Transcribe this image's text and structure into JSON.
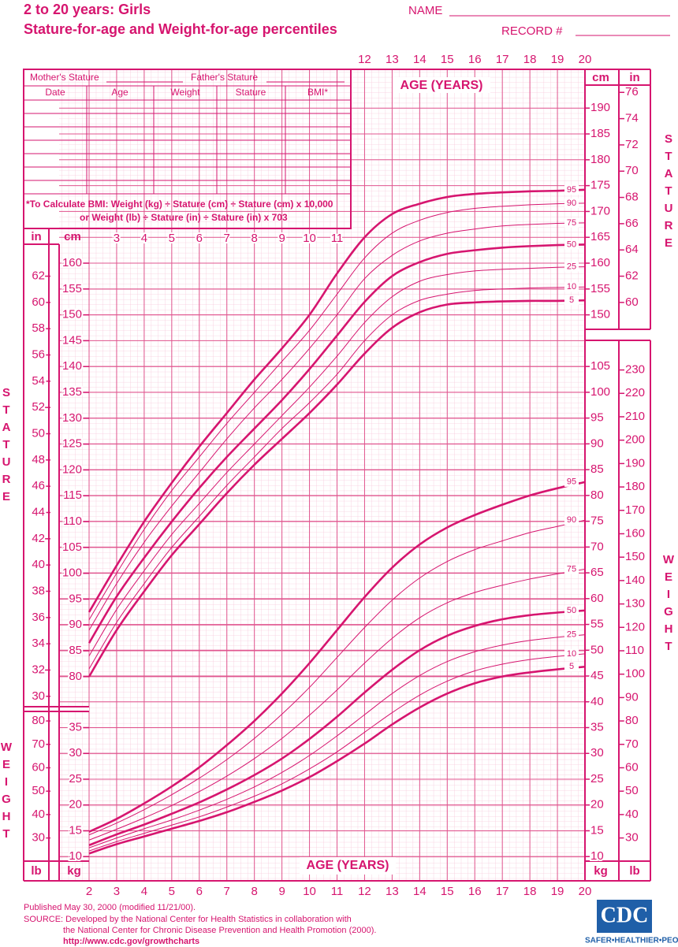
{
  "header": {
    "title": [
      "2 to 20 years: Girls",
      "Stature-for-age and Weight-for-age percentiles"
    ],
    "name": "NAME",
    "record": "RECORD #"
  },
  "form": {
    "mother": "Mother's Stature",
    "father": "Father's Stature",
    "columns": [
      "Date",
      "Age",
      "Weight",
      "Stature",
      "BMI*"
    ],
    "bmi_note": [
      "*To Calculate BMI: Weight (kg) ÷ Stature (cm) ÷ Stature (cm) x 10,000",
      "or Weight (lb) ÷ Stature (in) ÷ Stature (in) x 703"
    ]
  },
  "footer": {
    "published": "Published May 30, 2000 (modified 11/21/00).",
    "source": [
      "SOURCE: Developed by the National Center for Health Statistics in collaboration with",
      "the National Center for Chronic Disease Prevention and Health Promotion (2000)."
    ],
    "url": "http://www.cdc.gov/growthcharts",
    "logo": "CDC",
    "tagline": "SAFER•HEALTHIER•PEOPLE™"
  },
  "chart_data": {
    "type": "line",
    "xlabel": "AGE (YEARS)",
    "ylabel": "STATURE",
    "y2label": "WEIGHT",
    "y_unit": "cm",
    "y_alt_unit": "in",
    "y2_unit": "kg",
    "y2_alt_unit": "lb",
    "x": [
      2,
      3,
      4,
      5,
      6,
      7,
      8,
      9,
      10,
      11,
      12,
      13,
      14,
      15,
      16,
      17,
      18,
      19,
      20
    ],
    "xlim": [
      2,
      20
    ],
    "xticks": [
      2,
      3,
      4,
      5,
      6,
      7,
      8,
      9,
      10,
      11,
      12,
      13,
      14,
      15,
      16,
      17,
      18,
      19,
      20
    ],
    "xticks_top": [
      12,
      13,
      14,
      15,
      16,
      17,
      18,
      19,
      20
    ],
    "xticks_middle": [
      3,
      4,
      5,
      6,
      7,
      8,
      9,
      10,
      11
    ],
    "ylim": [
      40.5,
      197.5
    ],
    "yticks": [
      80,
      85,
      90,
      95,
      100,
      105,
      110,
      115,
      120,
      125,
      130,
      135,
      140,
      145,
      150,
      155,
      160
    ],
    "yticks_right": [
      150,
      155,
      160,
      165,
      170,
      175,
      180,
      185,
      190
    ],
    "y_alt_ticks": [
      30,
      32,
      34,
      36,
      38,
      40,
      42,
      44,
      46,
      48,
      50,
      52,
      54,
      56,
      58,
      60,
      62
    ],
    "y_alt_ticks_right": [
      60,
      62,
      64,
      66,
      68,
      70,
      72,
      74,
      76
    ],
    "y2lim": [
      5.3,
      162.6
    ],
    "y2ticks": [
      10,
      15,
      20,
      25,
      30,
      35
    ],
    "y2ticks_right": [
      10,
      15,
      20,
      25,
      30,
      35,
      40,
      45,
      50,
      55,
      60,
      65,
      70,
      75,
      80,
      85,
      90,
      95,
      100,
      105
    ],
    "y2_alt_ticks": [
      30,
      40,
      50,
      60,
      70,
      80
    ],
    "y2_alt_ticks_right": [
      30,
      40,
      50,
      60,
      70,
      80,
      90,
      100,
      110,
      120,
      130,
      140,
      150,
      160,
      170,
      180,
      190,
      200,
      210,
      220,
      230
    ],
    "grid": true,
    "series": [
      {
        "name": "5",
        "axis": "y",
        "color": "#d6156f",
        "width": 2.6,
        "values": [
          80,
          89,
          96.5,
          103.5,
          109.5,
          115.5,
          121,
          126,
          131,
          136.5,
          142.5,
          147.5,
          150.5,
          152,
          152.4,
          152.6,
          152.7,
          152.7,
          152.8
        ]
      },
      {
        "name": "10",
        "axis": "y",
        "color": "#d6156f",
        "width": 1,
        "values": [
          81.5,
          90.5,
          98,
          105,
          111,
          117,
          122.5,
          128,
          133,
          138.5,
          145,
          150,
          152.8,
          154,
          154.7,
          155,
          155.2,
          155.3,
          155.4
        ]
      },
      {
        "name": "25",
        "axis": "y",
        "color": "#d6156f",
        "width": 1,
        "values": [
          84,
          93,
          100.5,
          107.5,
          113.5,
          119.5,
          125,
          130.5,
          136,
          142,
          148.5,
          153.5,
          156.5,
          157.8,
          158.5,
          158.8,
          159,
          159.2,
          159.3
        ]
      },
      {
        "name": "50",
        "axis": "y",
        "color": "#d6156f",
        "width": 2.6,
        "values": [
          86.5,
          95.5,
          103,
          110,
          116.5,
          122.5,
          128,
          133.5,
          139.5,
          146,
          152.5,
          157.5,
          160.2,
          161.8,
          162.5,
          163,
          163.3,
          163.5,
          163.6
        ]
      },
      {
        "name": "75",
        "axis": "y",
        "color": "#d6156f",
        "width": 1,
        "values": [
          89,
          98,
          106,
          113,
          119.5,
          126,
          132,
          137.5,
          143.5,
          150,
          157,
          161.5,
          164.3,
          165.8,
          166.6,
          167.2,
          167.5,
          167.7,
          167.8
        ]
      },
      {
        "name": "90",
        "axis": "y",
        "color": "#d6156f",
        "width": 1,
        "values": [
          91,
          100,
          108.5,
          116,
          122.5,
          129,
          135,
          141,
          147,
          154,
          161,
          165.8,
          168.3,
          169.8,
          170.6,
          171,
          171.3,
          171.5,
          171.6
        ]
      },
      {
        "name": "95",
        "axis": "y",
        "color": "#d6156f",
        "width": 2.6,
        "values": [
          92.5,
          101.5,
          110,
          117.5,
          124.5,
          131,
          137.5,
          143.5,
          150,
          158,
          165,
          169.5,
          171.5,
          172.8,
          173.4,
          173.7,
          173.9,
          174,
          174.2
        ]
      },
      {
        "name": "5",
        "axis": "y2",
        "color": "#d6156f",
        "width": 2.6,
        "values": [
          10.6,
          12.4,
          13.9,
          15.4,
          16.9,
          18.6,
          20.6,
          22.8,
          25.4,
          28.5,
          31.9,
          35.6,
          38.9,
          41.6,
          43.6,
          44.9,
          45.7,
          46.3,
          46.8
        ]
      },
      {
        "name": "10",
        "axis": "y2",
        "color": "#d6156f",
        "width": 1,
        "values": [
          11.1,
          12.9,
          14.5,
          16.1,
          17.7,
          19.6,
          21.7,
          24.1,
          27,
          30.3,
          34.1,
          37.9,
          41.3,
          44,
          46,
          47.3,
          48.2,
          48.8,
          49.3
        ]
      },
      {
        "name": "25",
        "axis": "y2",
        "color": "#d6156f",
        "width": 1,
        "values": [
          11.7,
          13.6,
          15.4,
          17.1,
          19,
          21.1,
          23.5,
          26.3,
          29.6,
          33.4,
          37.5,
          41.6,
          45.1,
          47.8,
          49.7,
          51,
          51.9,
          52.5,
          53
        ]
      },
      {
        "name": "50",
        "axis": "y2",
        "color": "#d6156f",
        "width": 2.6,
        "values": [
          12.2,
          14.3,
          16.2,
          18.3,
          20.5,
          23,
          25.8,
          29,
          32.8,
          37.1,
          41.8,
          46.2,
          50,
          52.8,
          54.7,
          56,
          56.8,
          57.3,
          57.7
        ]
      },
      {
        "name": "75",
        "axis": "y2",
        "color": "#d6156f",
        "width": 1,
        "values": [
          13.2,
          15.3,
          17.5,
          19.9,
          22.6,
          25.6,
          29,
          32.9,
          37.4,
          42.3,
          47.5,
          52.3,
          56.3,
          59.2,
          61.2,
          62.6,
          63.8,
          64.8,
          65.7
        ]
      },
      {
        "name": "90",
        "axis": "y2",
        "color": "#d6156f",
        "width": 1,
        "values": [
          14.2,
          16.5,
          19.1,
          22,
          25.2,
          28.8,
          32.9,
          37.6,
          42.8,
          48.6,
          54.4,
          59.7,
          64,
          67.2,
          69.5,
          71.2,
          72.8,
          74,
          75.2
        ]
      },
      {
        "name": "95",
        "axis": "y2",
        "color": "#d6156f",
        "width": 2.6,
        "values": [
          14.8,
          17.3,
          20.3,
          23.6,
          27.3,
          31.6,
          36.3,
          41.6,
          47.5,
          53.9,
          60.3,
          66,
          70.5,
          73.8,
          76.2,
          78.2,
          80,
          81.4,
          82.6
        ]
      }
    ]
  }
}
